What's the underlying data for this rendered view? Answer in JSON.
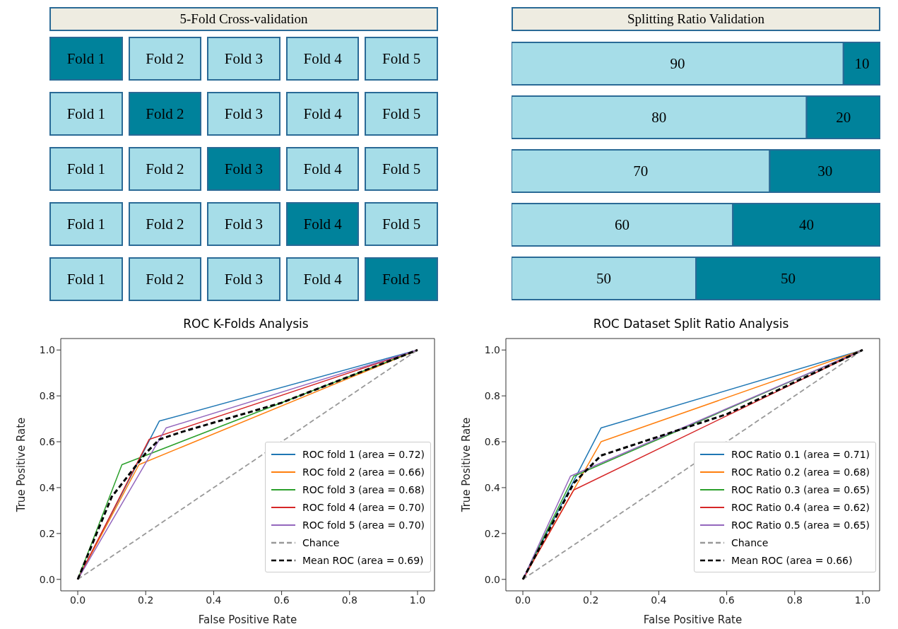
{
  "chart_data": [
    {
      "type": "other",
      "title": "5-Fold Cross-validation",
      "annotations": [
        "Fold 1",
        "Fold 2",
        "Fold 3",
        "Fold 4",
        "Fold 5",
        "Fold 1",
        "Fold 2",
        "Fold 3",
        "Fold 4",
        "Fold 5",
        "Fold 1",
        "Fold 2",
        "Fold 3",
        "Fold 4",
        "Fold 5",
        "Fold 1",
        "Fold 2",
        "Fold 3",
        "Fold 4",
        "Fold 5",
        "Fold 1",
        "Fold 2",
        "Fold 3",
        "Fold 4",
        "Fold 5"
      ]
    },
    {
      "type": "bar",
      "title": "Splitting Ratio Validation",
      "orientation": "horizontal",
      "stacked": true,
      "data_labels": true,
      "tick_labels": false,
      "categories": [
        null,
        null,
        null,
        null,
        null
      ],
      "series": [
        {
          "color": "#a6dde8",
          "values": [
            90,
            80,
            70,
            60,
            50
          ]
        },
        {
          "color": "#00829b",
          "values": [
            10,
            20,
            30,
            40,
            50
          ]
        }
      ]
    },
    {
      "type": "line",
      "title": "ROC K-Folds Analysis",
      "xlabel": "False Positive Rate",
      "ylabel": "True Positive Rate",
      "legend": "bottom right",
      "xlim": [
        -0.05,
        1.05
      ],
      "ylim": [
        -0.05,
        1.05
      ],
      "xticks": [
        {
          "value": 0,
          "label": "0.0"
        },
        {
          "value": 0.2,
          "label": "0.2"
        },
        {
          "value": 0.4,
          "label": "0.4"
        },
        {
          "value": 0.6,
          "label": "0.6"
        },
        {
          "value": 0.8,
          "label": "0.8"
        },
        {
          "value": 1,
          "label": "1.0"
        }
      ],
      "yticks": [
        {
          "value": 0,
          "label": "0.0"
        },
        {
          "value": 0.2,
          "label": "0.2"
        },
        {
          "value": 0.4,
          "label": "0.4"
        },
        {
          "value": 0.6,
          "label": "0.6"
        },
        {
          "value": 0.8,
          "label": "0.8"
        },
        {
          "value": 1,
          "label": "1.0"
        }
      ],
      "series": [
        {
          "name": "ROC fold 1 (area = 0.72)",
          "color": "#1f77b4",
          "x": [
            0,
            0.24,
            1
          ],
          "values": [
            0,
            0.69,
            1
          ]
        },
        {
          "name": "ROC fold 2 (area = 0.66)",
          "color": "#ff7f0e",
          "x": [
            0,
            0.18,
            1
          ],
          "values": [
            0,
            0.5,
            1
          ]
        },
        {
          "name": "ROC fold 3 (area = 0.68)",
          "color": "#2ca02c",
          "x": [
            0,
            0.13,
            1
          ],
          "values": [
            0,
            0.5,
            1
          ]
        },
        {
          "name": "ROC fold 4 (area = 0.70)",
          "color": "#d62728",
          "x": [
            0,
            0.21,
            1
          ],
          "values": [
            0,
            0.61,
            1
          ]
        },
        {
          "name": "ROC fold 5 (area = 0.70)",
          "color": "#9467bd",
          "x": [
            0,
            0.26,
            1
          ],
          "values": [
            0,
            0.66,
            1
          ]
        },
        {
          "name": "Chance",
          "color": "#999999",
          "line_style": "dashed",
          "x": [
            0,
            1
          ],
          "values": [
            0,
            1
          ]
        },
        {
          "name": "Mean ROC (area = 0.69)",
          "color": "#000000",
          "line_style": "dashed",
          "x": [
            0,
            0.1,
            0.2,
            0.24,
            0.3,
            0.6,
            1
          ],
          "values": [
            0,
            0.36,
            0.55,
            0.61,
            0.64,
            0.77,
            1
          ]
        }
      ]
    },
    {
      "type": "line",
      "title": "ROC Dataset Split Ratio Analysis",
      "xlabel": "False Positive Rate",
      "ylabel": "True Positive Rate",
      "legend": "bottom right",
      "xlim": [
        -0.05,
        1.05
      ],
      "ylim": [
        -0.05,
        1.05
      ],
      "xticks": [
        {
          "value": 0,
          "label": "0.0"
        },
        {
          "value": 0.2,
          "label": "0.2"
        },
        {
          "value": 0.4,
          "label": "0.4"
        },
        {
          "value": 0.6,
          "label": "0.6"
        },
        {
          "value": 0.8,
          "label": "0.8"
        },
        {
          "value": 1,
          "label": "1.0"
        }
      ],
      "yticks": [
        {
          "value": 0,
          "label": "0.0"
        },
        {
          "value": 0.2,
          "label": "0.2"
        },
        {
          "value": 0.4,
          "label": "0.4"
        },
        {
          "value": 0.6,
          "label": "0.6"
        },
        {
          "value": 0.8,
          "label": "0.8"
        },
        {
          "value": 1,
          "label": "1.0"
        }
      ],
      "series": [
        {
          "name": "ROC Ratio 0.1 (area = 0.71)",
          "color": "#1f77b4",
          "x": [
            0,
            0.23,
            1
          ],
          "values": [
            0,
            0.66,
            1
          ]
        },
        {
          "name": "ROC Ratio 0.2 (area = 0.68)",
          "color": "#ff7f0e",
          "x": [
            0,
            0.23,
            1
          ],
          "values": [
            0,
            0.6,
            1
          ]
        },
        {
          "name": "ROC Ratio 0.3 (area = 0.65)",
          "color": "#2ca02c",
          "x": [
            0,
            0.15,
            1
          ],
          "values": [
            0,
            0.45,
            1
          ]
        },
        {
          "name": "ROC Ratio 0.4 (area = 0.62)",
          "color": "#d62728",
          "x": [
            0,
            0.15,
            1
          ],
          "values": [
            0,
            0.39,
            1
          ]
        },
        {
          "name": "ROC Ratio 0.5 (area = 0.65)",
          "color": "#9467bd",
          "x": [
            0,
            0.14,
            1
          ],
          "values": [
            0,
            0.45,
            1
          ]
        },
        {
          "name": "Chance",
          "color": "#999999",
          "line_style": "dashed",
          "x": [
            0,
            1
          ],
          "values": [
            0,
            1
          ]
        },
        {
          "name": "Mean ROC (area = 0.66)",
          "color": "#000000",
          "line_style": "dashed",
          "x": [
            0,
            0.15,
            0.23,
            0.6,
            1
          ],
          "values": [
            0,
            0.42,
            0.54,
            0.72,
            1
          ]
        }
      ]
    }
  ]
}
